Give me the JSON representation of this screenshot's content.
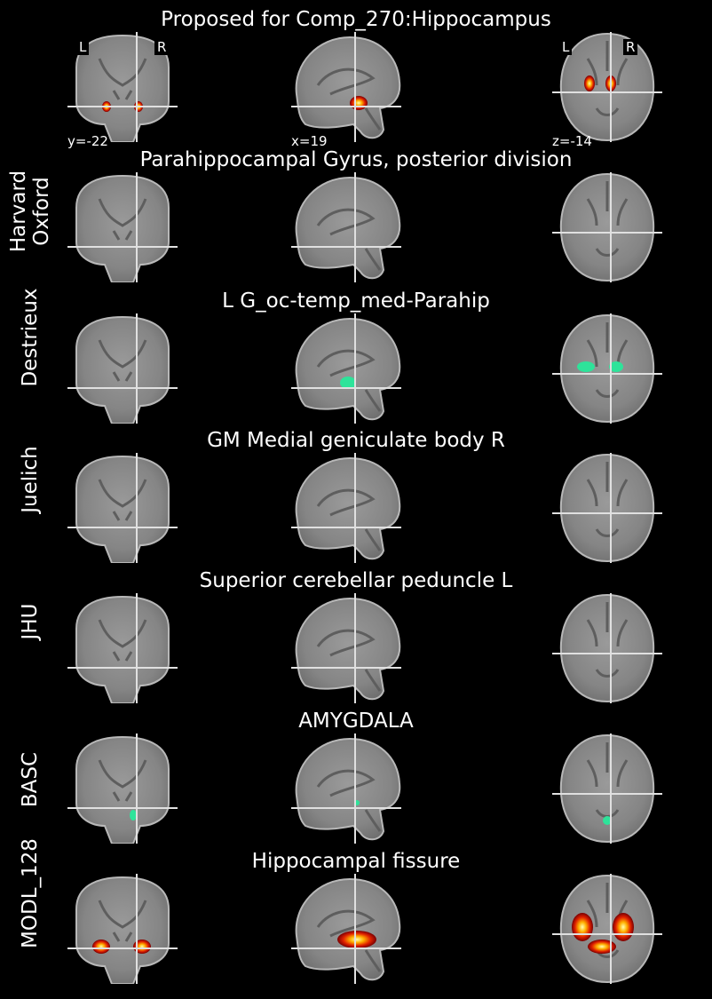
{
  "figure_title": "Proposed for Comp_270:Hippocampus",
  "orientation": {
    "left": "L",
    "right": "R"
  },
  "coords": {
    "coronal": "y=-22",
    "sagittal": "x=19",
    "axial": "z=-14"
  },
  "colors": {
    "background": "#000000",
    "crosshair": "#e0e0e0",
    "atlas_region": "#2ee39a",
    "heat_low": "#7a0000",
    "heat_high": "#ffff80"
  },
  "rows": [
    {
      "atlas": "",
      "title": "Proposed for Comp_270:Hippocampus",
      "overlay": "heat"
    },
    {
      "atlas": "Harvard Oxford",
      "title": "Parahippocampal Gyrus, posterior division",
      "overlay": "region"
    },
    {
      "atlas": "Destrieux",
      "title": "L G_oc-temp_med-Parahip",
      "overlay": "region"
    },
    {
      "atlas": "Juelich",
      "title": "GM Medial geniculate body R",
      "overlay": "none"
    },
    {
      "atlas": "JHU",
      "title": "Superior cerebellar peduncle L",
      "overlay": "region"
    },
    {
      "atlas": "BASC",
      "title": "AMYGDALA",
      "overlay": "region"
    },
    {
      "atlas": "MODL_128",
      "title": "Hippocampal fissure",
      "overlay": "heat"
    }
  ]
}
